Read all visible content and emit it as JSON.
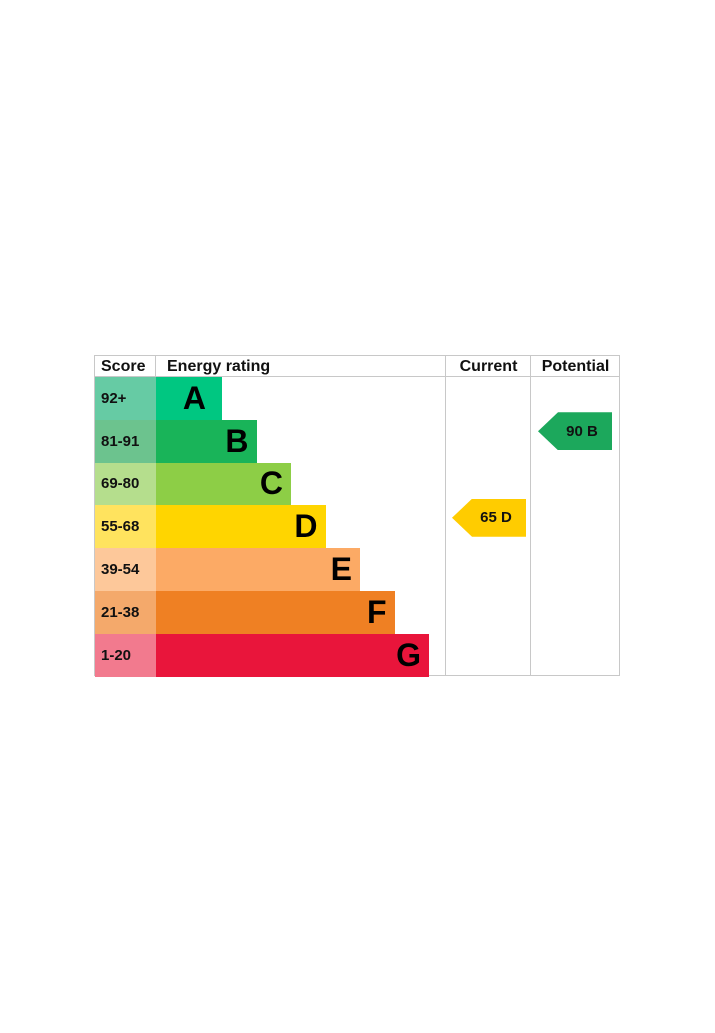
{
  "chart_data": {
    "type": "bar",
    "headers": {
      "score": "Score",
      "energy_rating": "Energy rating",
      "current": "Current",
      "potential": "Potential"
    },
    "bands": [
      {
        "letter": "A",
        "range": "92+",
        "color": "#00c781",
        "score_bg": "#66cba4"
      },
      {
        "letter": "B",
        "range": "81-91",
        "color": "#19b459",
        "score_bg": "#6cc38e"
      },
      {
        "letter": "C",
        "range": "69-80",
        "color": "#8dce46",
        "score_bg": "#b5de8d"
      },
      {
        "letter": "D",
        "range": "55-68",
        "color": "#ffd500",
        "score_bg": "#ffe35e"
      },
      {
        "letter": "E",
        "range": "39-54",
        "color": "#fcaa65",
        "score_bg": "#fdc89a"
      },
      {
        "letter": "F",
        "range": "21-38",
        "color": "#ef8023",
        "score_bg": "#f4a96b"
      },
      {
        "letter": "G",
        "range": "1-20",
        "color": "#e9153b",
        "score_bg": "#f27a8e"
      }
    ],
    "current": {
      "value": 65,
      "band": "D",
      "label": "65 D",
      "color": "#ffcc00"
    },
    "potential": {
      "value": 90,
      "band": "B",
      "label": "90 B",
      "color": "#1ca85c"
    }
  }
}
